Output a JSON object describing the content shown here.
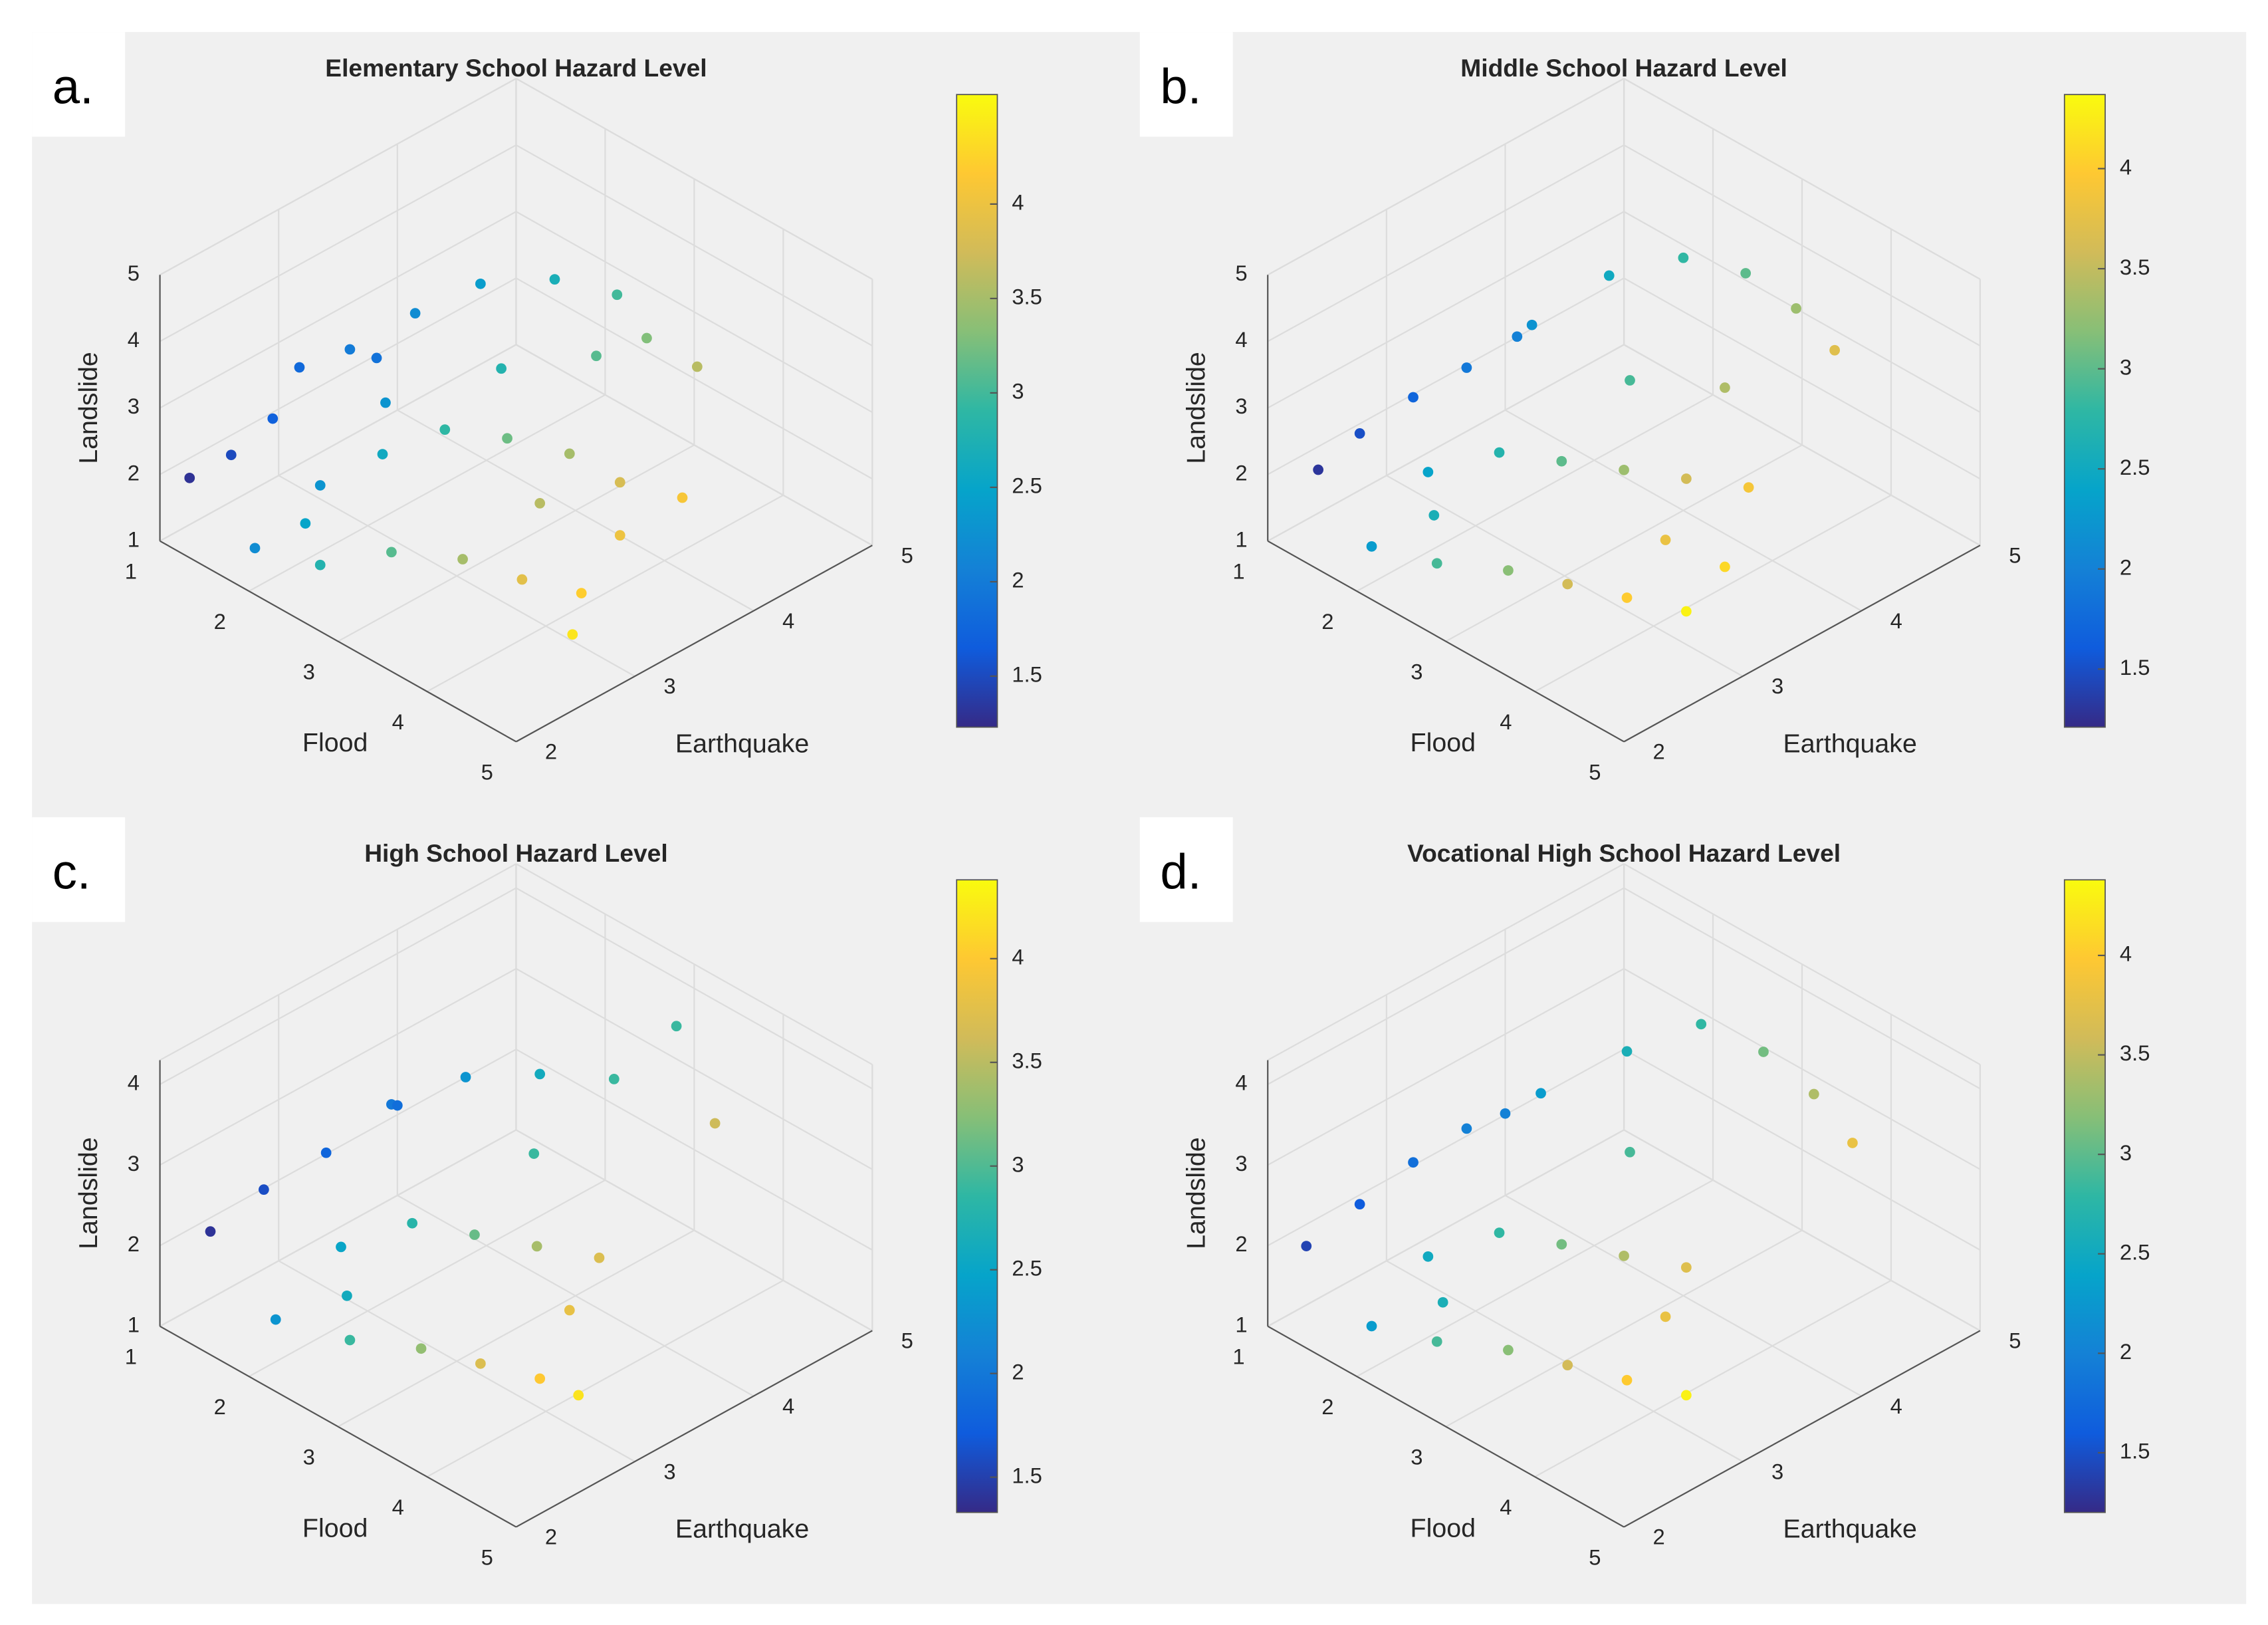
{
  "chart_data": [
    {
      "type": "scatter3d",
      "panel": "a.",
      "title": "Elementary School Hazard Level",
      "xlabel": "Flood",
      "ylabel": "Earthquake",
      "zlabel": "Landslide",
      "xlim": [
        1,
        5
      ],
      "xticks": [
        1,
        2,
        3,
        4,
        5
      ],
      "ylim": [
        2,
        5
      ],
      "yticks": [
        2,
        3,
        4,
        5
      ],
      "zlim": [
        1,
        5
      ],
      "zticks": [
        1,
        2,
        3,
        4,
        5
      ],
      "clim": [
        1.23,
        4.58
      ],
      "cticks": [
        1.5,
        2,
        2.5,
        3,
        3.5,
        4
      ],
      "colormap": [
        "#352a87",
        "#0f5cdd",
        "#1481d6",
        "#06a4ca",
        "#2eb7a4",
        "#87bf77",
        "#d1bb59",
        "#fec832",
        "#f9fb0e"
      ],
      "points": [
        [
          1.2,
          2.1,
          2.0,
          1.3
        ],
        [
          1.4,
          2.3,
          2.3,
          1.5
        ],
        [
          1.6,
          2.5,
          2.8,
          1.7
        ],
        [
          1.5,
          2.8,
          3.2,
          1.8
        ],
        [
          1.8,
          3.0,
          3.5,
          2.0
        ],
        [
          2.0,
          3.4,
          3.8,
          2.2
        ],
        [
          2.2,
          3.8,
          4.0,
          2.4
        ],
        [
          2.5,
          4.2,
          3.9,
          2.7
        ],
        [
          2.8,
          4.5,
          3.6,
          3.0
        ],
        [
          3.0,
          4.6,
          3.0,
          3.3
        ],
        [
          3.3,
          4.8,
          2.6,
          3.6
        ],
        [
          2.0,
          2.6,
          2.0,
          2.3
        ],
        [
          2.3,
          2.9,
          2.4,
          2.6
        ],
        [
          2.6,
          3.2,
          2.7,
          2.9
        ],
        [
          2.9,
          3.5,
          2.5,
          3.2
        ],
        [
          3.2,
          3.8,
          2.2,
          3.5
        ],
        [
          3.5,
          4.0,
          1.8,
          3.8
        ],
        [
          3.8,
          4.3,
          1.5,
          4.1
        ],
        [
          2.4,
          2.3,
          1.4,
          2.8
        ],
        [
          2.8,
          2.6,
          1.6,
          3.1
        ],
        [
          3.2,
          2.9,
          1.5,
          3.5
        ],
        [
          3.6,
          3.1,
          1.3,
          3.9
        ],
        [
          4.0,
          3.3,
          1.2,
          4.2
        ],
        [
          4.3,
          3.0,
          1.1,
          4.4
        ],
        [
          1.8,
          2.2,
          1.3,
          2.2
        ],
        [
          2.1,
          2.4,
          1.7,
          2.5
        ],
        [
          2.7,
          3.6,
          3.3,
          2.8
        ],
        [
          3.1,
          4.1,
          3.3,
          3.1
        ],
        [
          1.7,
          3.3,
          3.0,
          1.9
        ],
        [
          2.2,
          3.0,
          3.0,
          2.3
        ],
        [
          3.4,
          3.4,
          2.0,
          3.6
        ],
        [
          3.9,
          3.7,
          1.6,
          4.0
        ]
      ]
    },
    {
      "type": "scatter3d",
      "panel": "b.",
      "title": "Middle School Hazard Level",
      "xlabel": "Flood",
      "ylabel": "Earthquake",
      "zlabel": "Landslide",
      "xlim": [
        1,
        5
      ],
      "xticks": [
        1,
        2,
        3,
        4,
        5
      ],
      "ylim": [
        2,
        5
      ],
      "yticks": [
        2,
        3,
        4,
        5
      ],
      "zlim": [
        1,
        5
      ],
      "zticks": [
        1,
        2,
        3,
        4,
        5
      ],
      "clim": [
        1.21,
        4.37
      ],
      "cticks": [
        1.5,
        2,
        2.5,
        3,
        3.5,
        4
      ],
      "colormap": [
        "#352a87",
        "#0f5cdd",
        "#1481d6",
        "#06a4ca",
        "#2eb7a4",
        "#87bf77",
        "#d1bb59",
        "#fec832",
        "#f9fb0e"
      ],
      "points": [
        [
          1.3,
          2.2,
          2.1,
          1.3
        ],
        [
          1.5,
          2.4,
          2.6,
          1.5
        ],
        [
          1.7,
          2.7,
          3.0,
          1.7
        ],
        [
          1.9,
          3.0,
          3.3,
          1.9
        ],
        [
          2.1,
          3.4,
          3.7,
          2.2
        ],
        [
          2.3,
          3.9,
          4.1,
          2.5
        ],
        [
          2.6,
          4.3,
          4.2,
          2.8
        ],
        [
          2.9,
          4.6,
          3.9,
          3.0
        ],
        [
          3.2,
          4.8,
          3.4,
          3.3
        ],
        [
          3.5,
          4.9,
          2.9,
          3.7
        ],
        [
          2.0,
          2.6,
          2.2,
          2.4
        ],
        [
          2.4,
          2.9,
          2.5,
          2.7
        ],
        [
          2.7,
          3.2,
          2.3,
          3.0
        ],
        [
          3.0,
          3.5,
          2.1,
          3.3
        ],
        [
          3.3,
          3.8,
          1.9,
          3.6
        ],
        [
          3.6,
          4.1,
          1.7,
          3.9
        ],
        [
          2.5,
          2.3,
          1.5,
          2.9
        ],
        [
          2.9,
          2.6,
          1.4,
          3.2
        ],
        [
          3.3,
          2.8,
          1.3,
          3.6
        ],
        [
          3.7,
          3.0,
          1.2,
          4.0
        ],
        [
          4.1,
          3.2,
          1.1,
          4.3
        ],
        [
          1.9,
          2.2,
          1.4,
          2.3
        ],
        [
          2.2,
          2.5,
          1.8,
          2.6
        ],
        [
          2.8,
          3.7,
          3.1,
          2.9
        ],
        [
          3.2,
          4.2,
          2.8,
          3.4
        ],
        [
          1.8,
          3.5,
          3.2,
          2.0
        ],
        [
          3.6,
          3.4,
          1.6,
          3.8
        ],
        [
          4.0,
          3.6,
          1.3,
          4.1
        ]
      ]
    },
    {
      "type": "scatter3d",
      "panel": "c.",
      "title": "High School Hazard Level",
      "xlabel": "Flood",
      "ylabel": "Earthquake",
      "zlabel": "Landslide",
      "xlim": [
        1,
        5
      ],
      "xticks": [
        1,
        2,
        3,
        4,
        5
      ],
      "ylim": [
        2,
        5
      ],
      "yticks": [
        2,
        3,
        4,
        5
      ],
      "zlim": [
        1,
        4.3
      ],
      "zticks": [
        1,
        2,
        3,
        4
      ],
      "clim": [
        1.33,
        4.38
      ],
      "cticks": [
        1.5,
        2,
        2.5,
        3,
        3.5,
        4
      ],
      "colormap": [
        "#352a87",
        "#0f5cdd",
        "#1481d6",
        "#06a4ca",
        "#2eb7a4",
        "#87bf77",
        "#d1bb59",
        "#fec832",
        "#f9fb0e"
      ],
      "points": [
        [
          1.3,
          2.2,
          2.2,
          1.4
        ],
        [
          1.5,
          2.5,
          2.6,
          1.6
        ],
        [
          1.8,
          2.8,
          3.0,
          1.8
        ],
        [
          2.0,
          3.2,
          3.4,
          2.0
        ],
        [
          2.3,
          3.6,
          3.6,
          2.3
        ],
        [
          2.6,
          4.0,
          3.5,
          2.6
        ],
        [
          2.9,
          4.4,
          3.3,
          2.9
        ],
        [
          3.2,
          4.7,
          3.9,
          2.9
        ],
        [
          3.5,
          4.8,
          2.8,
          3.6
        ],
        [
          2.1,
          2.7,
          2.1,
          2.5
        ],
        [
          2.5,
          3.0,
          2.4,
          2.8
        ],
        [
          2.8,
          3.3,
          2.2,
          3.1
        ],
        [
          3.1,
          3.6,
          2.0,
          3.4
        ],
        [
          3.4,
          3.9,
          1.8,
          3.7
        ],
        [
          2.6,
          2.4,
          1.5,
          2.9
        ],
        [
          3.0,
          2.7,
          1.4,
          3.3
        ],
        [
          3.4,
          2.9,
          1.3,
          3.7
        ],
        [
          3.8,
          3.1,
          1.2,
          4.0
        ],
        [
          4.1,
          3.2,
          1.1,
          4.2
        ],
        [
          1.9,
          2.3,
          1.4,
          2.3
        ],
        [
          2.3,
          2.6,
          1.7,
          2.6
        ],
        [
          2.8,
          3.8,
          2.8,
          2.9
        ],
        [
          1.8,
          3.4,
          3.1,
          1.9
        ],
        [
          3.6,
          3.5,
          1.6,
          3.8
        ]
      ]
    },
    {
      "type": "scatter3d",
      "panel": "d.",
      "title": "Vocational High School Hazard Level",
      "xlabel": "Flood",
      "ylabel": "Earthquake",
      "zlabel": "Landslide",
      "xlim": [
        1,
        5
      ],
      "xticks": [
        1,
        2,
        3,
        4,
        5
      ],
      "ylim": [
        2,
        5
      ],
      "yticks": [
        2,
        3,
        4,
        5
      ],
      "zlim": [
        1,
        4.3
      ],
      "zticks": [
        1,
        2,
        3,
        4
      ],
      "clim": [
        1.2,
        4.38
      ],
      "cticks": [
        1.5,
        2,
        2.5,
        3,
        3.5,
        4
      ],
      "colormap": [
        "#352a87",
        "#0f5cdd",
        "#1481d6",
        "#06a4ca",
        "#2eb7a4",
        "#87bf77",
        "#d1bb59",
        "#fec832",
        "#f9fb0e"
      ],
      "points": [
        [
          1.3,
          2.1,
          2.1,
          1.4
        ],
        [
          1.5,
          2.4,
          2.5,
          1.6
        ],
        [
          1.7,
          2.7,
          2.9,
          1.8
        ],
        [
          1.9,
          3.0,
          3.2,
          2.0
        ],
        [
          2.2,
          3.4,
          3.5,
          2.3
        ],
        [
          2.5,
          3.9,
          3.8,
          2.6
        ],
        [
          2.8,
          4.3,
          4.0,
          2.8
        ],
        [
          3.1,
          4.6,
          3.6,
          3.1
        ],
        [
          3.4,
          4.8,
          3.1,
          3.4
        ],
        [
          3.7,
          4.9,
          2.6,
          3.8
        ],
        [
          2.0,
          2.6,
          2.0,
          2.5
        ],
        [
          2.4,
          2.9,
          2.3,
          2.8
        ],
        [
          2.7,
          3.2,
          2.1,
          3.1
        ],
        [
          3.0,
          3.5,
          1.9,
          3.4
        ],
        [
          3.3,
          3.8,
          1.7,
          3.7
        ],
        [
          2.5,
          2.3,
          1.5,
          2.9
        ],
        [
          2.9,
          2.6,
          1.4,
          3.2
        ],
        [
          3.3,
          2.8,
          1.3,
          3.6
        ],
        [
          3.7,
          3.0,
          1.2,
          4.0
        ],
        [
          4.1,
          3.2,
          1.1,
          4.3
        ],
        [
          1.9,
          2.2,
          1.4,
          2.3
        ],
        [
          2.3,
          2.5,
          1.7,
          2.6
        ],
        [
          2.8,
          3.7,
          2.9,
          2.9
        ],
        [
          1.8,
          3.4,
          3.0,
          2.0
        ],
        [
          3.6,
          3.4,
          1.6,
          3.8
        ]
      ]
    }
  ]
}
